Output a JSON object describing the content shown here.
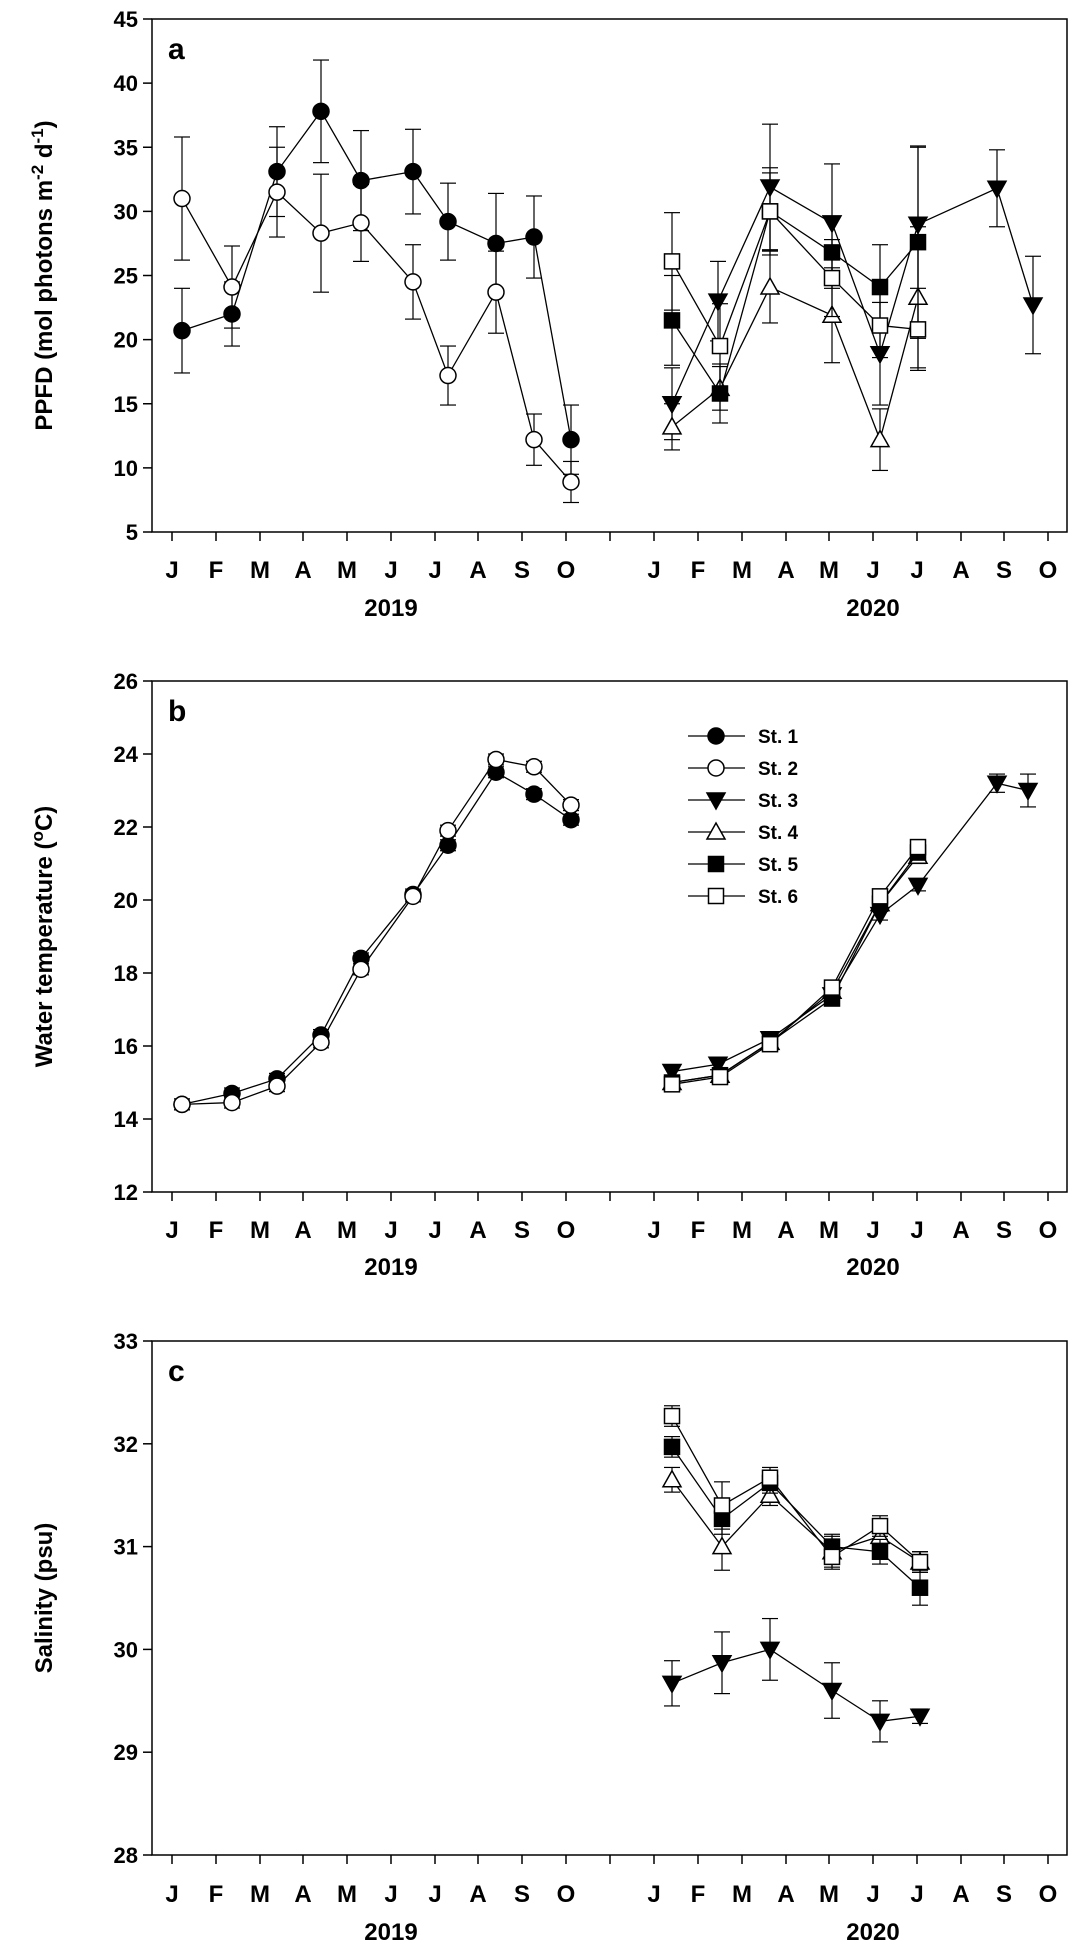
{
  "chart_data": [
    {
      "type": "scatter",
      "panel_label": "a",
      "ylabel": "PPFD (mol photons m^-2 d^-1)",
      "ylabel_parts": {
        "base": "PPFD (mol photons m",
        "sup1": "-2",
        "mid": " d",
        "sup2": "-1",
        "end": ")"
      },
      "ylim": [
        5,
        45
      ],
      "yticks": [
        5,
        10,
        15,
        20,
        25,
        30,
        35,
        40,
        45
      ],
      "x_month_labels": [
        "J",
        "F",
        "M",
        "A",
        "M",
        "J",
        "J",
        "A",
        "S",
        "O",
        "J",
        "F",
        "M",
        "A",
        "M",
        "J",
        "J",
        "A",
        "S",
        "O"
      ],
      "x_year_labels": [
        "2019",
        "2020"
      ],
      "series": [
        {
          "name": "St. 1",
          "marker": "circle",
          "fill": "black",
          "points": [
            [
              0,
              20.7,
              3.3
            ],
            [
              1,
              22,
              2.5
            ],
            [
              2,
              33.1,
              3.5
            ],
            [
              2.9,
              37.8,
              4
            ],
            [
              3.3,
              32.4,
              3.9
            ],
            [
              4.5,
              33.1,
              3.3
            ],
            [
              5.2,
              29.2,
              3
            ],
            [
              6.1,
              27.5,
              3.9
            ],
            [
              6.5,
              28,
              3.2
            ],
            [
              7.5,
              12.2,
              2.7
            ]
          ]
        },
        {
          "name": "St. 2",
          "marker": "circle",
          "fill": "white",
          "points": [
            [
              0,
              31,
              4.8
            ],
            [
              1,
              24.1,
              3.2
            ],
            [
              2,
              31.5,
              3.5
            ],
            [
              2.9,
              28.3,
              4.6
            ],
            [
              3.3,
              29.1,
              3
            ],
            [
              4.5,
              24.5,
              2.9
            ],
            [
              5.2,
              17.2,
              2.3
            ],
            [
              6.1,
              23.7,
              3.2
            ],
            [
              6.5,
              12.2,
              2
            ],
            [
              7.5,
              8.9,
              1.6
            ]
          ]
        },
        {
          "name": "St. 3",
          "marker": "triangle-down",
          "fill": "black",
          "points": [
            [
              0,
              15,
              2.8
            ],
            [
              1,
              23,
              3.1
            ],
            [
              2,
              31.9,
              4.9
            ],
            [
              3.3,
              29.1,
              4.6
            ],
            [
              4.5,
              18.9,
              4
            ],
            [
              5.2,
              29,
              6
            ],
            [
              6.5,
              31.8,
              3
            ],
            [
              7.5,
              22.7,
              3.8
            ]
          ]
        },
        {
          "name": "St. 4",
          "marker": "triangle-up",
          "fill": "white",
          "points": [
            [
              0,
              13.2,
              1.8
            ],
            [
              1,
              16.2,
              1.7
            ],
            [
              2,
              24.1,
              2.8
            ],
            [
              3.3,
              21.9,
              3.7
            ],
            [
              4.5,
              12.2,
              2.4
            ],
            [
              5.2,
              23.3,
              5.5
            ]
          ]
        },
        {
          "name": "St. 5",
          "marker": "square",
          "fill": "black",
          "points": [
            [
              0,
              21.5,
              3.5
            ],
            [
              1,
              15.8,
              2.3
            ],
            [
              2,
              30,
              3
            ],
            [
              3.3,
              26.8,
              2.8
            ],
            [
              4.5,
              24.1,
              3.3
            ],
            [
              5.2,
              27.6,
              7.5
            ]
          ]
        },
        {
          "name": "St. 6",
          "marker": "square",
          "fill": "white",
          "points": [
            [
              0,
              26.1,
              3.8
            ],
            [
              1,
              19.5,
              3.3
            ],
            [
              2,
              30,
              3.4
            ],
            [
              3.3,
              24.8,
              3
            ],
            [
              4.5,
              21.1,
              2.5
            ],
            [
              5.2,
              20.8,
              3.2
            ]
          ]
        }
      ]
    },
    {
      "type": "scatter",
      "panel_label": "b",
      "ylabel": "Water temperature (°C)",
      "ylabel_parts": {
        "base": "Water temperature (",
        "sup1": "o",
        "mid": "C)",
        "sup2": "",
        "end": ""
      },
      "ylim": [
        12,
        26
      ],
      "yticks": [
        12,
        14,
        16,
        18,
        20,
        22,
        24,
        26
      ],
      "x_month_labels": [
        "J",
        "F",
        "M",
        "A",
        "M",
        "J",
        "J",
        "A",
        "S",
        "O",
        "J",
        "F",
        "M",
        "A",
        "M",
        "J",
        "J",
        "A",
        "S",
        "O"
      ],
      "x_year_labels": [
        "2019",
        "2020"
      ],
      "legend": {
        "placement": "upper-center-right",
        "entries": [
          "St. 1",
          "St. 2",
          "St. 3",
          "St. 4",
          "St. 5",
          "St. 6"
        ]
      },
      "series": [
        {
          "name": "St. 1",
          "marker": "circle",
          "fill": "black",
          "points": [
            [
              0,
              14.4,
              0.15
            ],
            [
              1.4,
              14.7,
              0.15
            ],
            [
              2.4,
              15.1,
              0.15
            ],
            [
              3.5,
              16.3,
              0.15
            ],
            [
              4.4,
              18.4,
              0.15
            ],
            [
              5.5,
              20.15,
              0.15
            ],
            [
              6.5,
              21.5,
              0.15
            ],
            [
              7.3,
              23.5,
              0.15
            ],
            [
              7.9,
              22.9,
              0.15
            ],
            [
              8.9,
              22.2,
              0.15
            ]
          ]
        },
        {
          "name": "St. 2",
          "marker": "circle",
          "fill": "white",
          "points": [
            [
              0,
              14.4,
              0.15
            ],
            [
              1.4,
              14.45,
              0.15
            ],
            [
              2.4,
              14.9,
              0.15
            ],
            [
              3.5,
              16.1,
              0.15
            ],
            [
              4.4,
              18.1,
              0.15
            ],
            [
              5.5,
              20.1,
              0.15
            ],
            [
              6.5,
              21.9,
              0.15
            ],
            [
              7.3,
              23.85,
              0.15
            ],
            [
              7.9,
              23.65,
              0.15
            ],
            [
              8.9,
              22.6,
              0.15
            ]
          ]
        },
        {
          "name": "St. 3",
          "marker": "triangle-down",
          "fill": "black",
          "points": [
            [
              0,
              15.3,
              0.15
            ],
            [
              1.4,
              15.5,
              0.15
            ],
            [
              2.4,
              16.2,
              0.15
            ],
            [
              3.5,
              17.4,
              0.15
            ],
            [
              4.4,
              19.6,
              0.15
            ],
            [
              5.5,
              20.4,
              0.15
            ],
            [
              6.5,
              23.2,
              0.25
            ],
            [
              7.2,
              23,
              0.45
            ]
          ]
        },
        {
          "name": "St. 4",
          "marker": "triangle-up",
          "fill": "white",
          "points": [
            [
              0,
              15,
              0.15
            ],
            [
              1.4,
              15.2,
              0.15
            ],
            [
              2.4,
              16.1,
              0.15
            ],
            [
              3.5,
              17.5,
              0.15
            ],
            [
              4.4,
              19.9,
              0.2
            ],
            [
              5.5,
              21.2,
              0.2
            ]
          ]
        },
        {
          "name": "St. 5",
          "marker": "square",
          "fill": "black",
          "points": [
            [
              0,
              15,
              0.15
            ],
            [
              1.4,
              15.2,
              0.15
            ],
            [
              2.4,
              16.1,
              0.15
            ],
            [
              3.5,
              17.3,
              0.15
            ],
            [
              4.4,
              19.9,
              0.2
            ],
            [
              5.5,
              21.3,
              0.2
            ]
          ]
        },
        {
          "name": "St. 6",
          "marker": "square",
          "fill": "white",
          "points": [
            [
              0,
              14.95,
              0.15
            ],
            [
              1.4,
              15.15,
              0.15
            ],
            [
              2.4,
              16.05,
              0.15
            ],
            [
              3.5,
              17.6,
              0.15
            ],
            [
              4.4,
              20.1,
              0.2
            ],
            [
              5.5,
              21.45,
              0.2
            ]
          ]
        }
      ]
    },
    {
      "type": "scatter",
      "panel_label": "c",
      "ylabel": "Salinity (psu)",
      "ylabel_parts": {
        "base": "Salinity (psu)",
        "sup1": "",
        "mid": "",
        "sup2": "",
        "end": ""
      },
      "ylim": [
        28,
        33
      ],
      "yticks": [
        28,
        29,
        30,
        31,
        32,
        33
      ],
      "x_month_labels": [
        "J",
        "F",
        "M",
        "A",
        "M",
        "J",
        "J",
        "A",
        "S",
        "O",
        "J",
        "F",
        "M",
        "A",
        "M",
        "J",
        "J",
        "A",
        "S",
        "O"
      ],
      "x_year_labels": [
        "2019",
        "2020"
      ],
      "series": [
        {
          "name": "St. 3",
          "marker": "triangle-down",
          "fill": "black",
          "points": [
            [
              0,
              29.67,
              0.22
            ],
            [
              1.5,
              29.87,
              0.3
            ],
            [
              2.5,
              30,
              0.3
            ],
            [
              3.8,
              29.6,
              0.27
            ],
            [
              4.6,
              29.3,
              0.2
            ],
            [
              5.6,
              29.35,
              0.07
            ]
          ]
        },
        {
          "name": "St. 4",
          "marker": "triangle-up",
          "fill": "white",
          "points": [
            [
              0,
              31.65,
              0.12
            ],
            [
              1.5,
              31,
              0.23
            ],
            [
              2.5,
              31.5,
              0.1
            ],
            [
              3.8,
              30.95,
              0.15
            ],
            [
              4.6,
              31.1,
              0.1
            ],
            [
              5.6,
              30.85,
              0.1
            ]
          ]
        },
        {
          "name": "St. 5",
          "marker": "square",
          "fill": "black",
          "points": [
            [
              0,
              31.97,
              0.1
            ],
            [
              1.5,
              31.27,
              0.15
            ],
            [
              2.5,
              31.62,
              0.1
            ],
            [
              3.8,
              31,
              0.12
            ],
            [
              4.6,
              30.95,
              0.12
            ],
            [
              5.6,
              30.6,
              0.17
            ]
          ]
        },
        {
          "name": "St. 6",
          "marker": "square",
          "fill": "white",
          "points": [
            [
              0,
              32.27,
              0.1
            ],
            [
              1.5,
              31.4,
              0.23
            ],
            [
              2.5,
              31.67,
              0.1
            ],
            [
              3.8,
              30.9,
              0.12
            ],
            [
              4.6,
              31.2,
              0.1
            ],
            [
              5.6,
              30.85,
              0.1
            ]
          ]
        }
      ]
    }
  ]
}
